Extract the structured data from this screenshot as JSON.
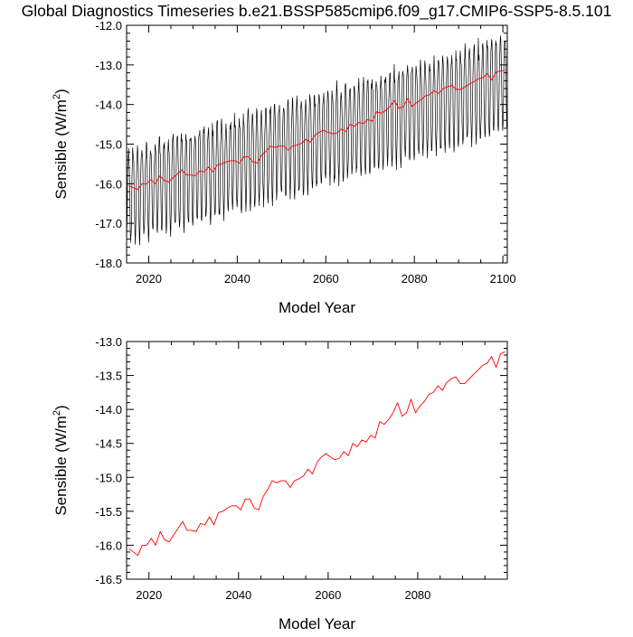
{
  "figure": {
    "title": "Global Diagnostics Timeseries b.e21.BSSP585cmip6.f09_g17.CMIP6-SSP5-8.5.101"
  },
  "colors": {
    "monthly_line": "#000000",
    "annual_line": "#ff0000",
    "axis": "#000000",
    "background": "#ffffff"
  },
  "chart_data": [
    {
      "type": "line",
      "xlabel": "Model Year",
      "ylabel": "Sensible (W/m²)",
      "ylabel_base": "Sensible (W/m",
      "ylabel_sup": "2",
      "ylabel_close": ")",
      "xlim": [
        2015,
        2101
      ],
      "ylim": [
        -18.0,
        -12.0
      ],
      "xticks": [
        2020,
        2040,
        2060,
        2080,
        2100
      ],
      "yticks": [
        -18.0,
        -17.0,
        -16.0,
        -15.0,
        -14.0,
        -13.0,
        -12.0
      ],
      "ytick_labels": [
        "-18.0",
        "-17.0",
        "-16.0",
        "-15.0",
        "-14.0",
        "-13.0",
        "-12.0"
      ],
      "grid": false,
      "series": [
        {
          "style": "monthly",
          "color": "#000000",
          "annual_cycle": {
            "mean_start": -16.0,
            "mean_end": -13.15,
            "max_offset": [
              0.75,
              0.9
            ],
            "min_offset": [
              -1.45,
              -1.5
            ],
            "months_per_year": 12
          }
        },
        {
          "style": "annual",
          "color": "#ff0000",
          "x": [
            2015.5,
            2016.5,
            2017.5,
            2018.5,
            2019.5,
            2020.5,
            2021.5,
            2022.5,
            2023.5,
            2024.5,
            2025.5,
            2026.5,
            2027.5,
            2028.5,
            2029.5,
            2030.5,
            2031.5,
            2032.5,
            2033.5,
            2034.5,
            2035.5,
            2036.5,
            2037.5,
            2038.5,
            2039.5,
            2040.5,
            2041.5,
            2042.5,
            2043.5,
            2044.5,
            2045.5,
            2046.5,
            2047.5,
            2048.5,
            2049.5,
            2050.5,
            2051.5,
            2052.5,
            2053.5,
            2054.5,
            2055.5,
            2056.5,
            2057.5,
            2058.5,
            2059.5,
            2060.5,
            2061.5,
            2062.5,
            2063.5,
            2064.5,
            2065.5,
            2066.5,
            2067.5,
            2068.5,
            2069.5,
            2070.5,
            2071.5,
            2072.5,
            2073.5,
            2074.5,
            2075.5,
            2076.5,
            2077.5,
            2078.5,
            2079.5,
            2080.5,
            2081.5,
            2082.5,
            2083.5,
            2084.5,
            2085.5,
            2086.5,
            2087.5,
            2088.5,
            2089.5,
            2090.5,
            2091.5,
            2092.5,
            2093.5,
            2094.5,
            2095.5,
            2096.5,
            2097.5,
            2098.5,
            2099.5,
            2100.5
          ],
          "y": [
            -16.05,
            -16.1,
            -16.15,
            -16.0,
            -16.0,
            -15.9,
            -16.0,
            -15.8,
            -15.92,
            -15.95,
            -15.85,
            -15.75,
            -15.65,
            -15.78,
            -15.78,
            -15.8,
            -15.68,
            -15.7,
            -15.58,
            -15.7,
            -15.52,
            -15.5,
            -15.45,
            -15.42,
            -15.42,
            -15.48,
            -15.32,
            -15.32,
            -15.45,
            -15.48,
            -15.28,
            -15.18,
            -15.05,
            -15.08,
            -15.05,
            -15.05,
            -15.15,
            -15.05,
            -15.02,
            -14.98,
            -14.88,
            -14.95,
            -14.78,
            -14.7,
            -14.65,
            -14.7,
            -14.74,
            -14.72,
            -14.62,
            -14.68,
            -14.5,
            -14.55,
            -14.45,
            -14.48,
            -14.38,
            -14.42,
            -14.18,
            -14.22,
            -14.15,
            -14.05,
            -13.9,
            -14.1,
            -14.05,
            -13.85,
            -14.05,
            -13.95,
            -13.88,
            -13.78,
            -13.75,
            -13.65,
            -13.72,
            -13.6,
            -13.55,
            -13.52,
            -13.62,
            -13.62,
            -13.55,
            -13.48,
            -13.42,
            -13.35,
            -13.32,
            -13.22,
            -13.38,
            -13.18,
            -13.15,
            -13.14
          ]
        }
      ]
    },
    {
      "type": "line",
      "xlabel": "Model Year",
      "ylabel": "Sensible (W/m²)",
      "ylabel_base": "Sensible (W/m",
      "ylabel_sup": "2",
      "ylabel_close": ")",
      "xlim": [
        2015,
        2100
      ],
      "ylim": [
        -16.5,
        -13.0
      ],
      "xticks": [
        2020,
        2040,
        2060,
        2080
      ],
      "yticks": [
        -16.5,
        -16.0,
        -15.5,
        -15.0,
        -14.5,
        -14.0,
        -13.5,
        -13.0
      ],
      "ytick_labels": [
        "-16.5",
        "-16.0",
        "-15.5",
        "-15.0",
        "-14.5",
        "-14.0",
        "-13.5",
        "-13.0"
      ],
      "grid": false,
      "series": [
        {
          "style": "annual",
          "color": "#ff0000",
          "x": [
            2015.5,
            2016.5,
            2017.5,
            2018.5,
            2019.5,
            2020.5,
            2021.5,
            2022.5,
            2023.5,
            2024.5,
            2025.5,
            2026.5,
            2027.5,
            2028.5,
            2029.5,
            2030.5,
            2031.5,
            2032.5,
            2033.5,
            2034.5,
            2035.5,
            2036.5,
            2037.5,
            2038.5,
            2039.5,
            2040.5,
            2041.5,
            2042.5,
            2043.5,
            2044.5,
            2045.5,
            2046.5,
            2047.5,
            2048.5,
            2049.5,
            2050.5,
            2051.5,
            2052.5,
            2053.5,
            2054.5,
            2055.5,
            2056.5,
            2057.5,
            2058.5,
            2059.5,
            2060.5,
            2061.5,
            2062.5,
            2063.5,
            2064.5,
            2065.5,
            2066.5,
            2067.5,
            2068.5,
            2069.5,
            2070.5,
            2071.5,
            2072.5,
            2073.5,
            2074.5,
            2075.5,
            2076.5,
            2077.5,
            2078.5,
            2079.5,
            2080.5,
            2081.5,
            2082.5,
            2083.5,
            2084.5,
            2085.5,
            2086.5,
            2087.5,
            2088.5,
            2089.5,
            2090.5,
            2091.5,
            2092.5,
            2093.5,
            2094.5,
            2095.5,
            2096.5,
            2097.5,
            2098.5,
            2099.5
          ],
          "y": [
            -16.05,
            -16.1,
            -16.15,
            -16.0,
            -16.0,
            -15.9,
            -16.0,
            -15.8,
            -15.92,
            -15.95,
            -15.85,
            -15.75,
            -15.65,
            -15.78,
            -15.78,
            -15.8,
            -15.68,
            -15.7,
            -15.58,
            -15.7,
            -15.52,
            -15.5,
            -15.45,
            -15.42,
            -15.42,
            -15.48,
            -15.32,
            -15.32,
            -15.45,
            -15.48,
            -15.28,
            -15.18,
            -15.05,
            -15.08,
            -15.05,
            -15.05,
            -15.15,
            -15.05,
            -15.02,
            -14.98,
            -14.88,
            -14.95,
            -14.78,
            -14.7,
            -14.65,
            -14.7,
            -14.74,
            -14.72,
            -14.62,
            -14.68,
            -14.5,
            -14.55,
            -14.45,
            -14.48,
            -14.38,
            -14.42,
            -14.18,
            -14.22,
            -14.15,
            -14.05,
            -13.9,
            -14.1,
            -14.05,
            -13.85,
            -14.05,
            -13.95,
            -13.88,
            -13.78,
            -13.75,
            -13.65,
            -13.72,
            -13.6,
            -13.55,
            -13.52,
            -13.62,
            -13.62,
            -13.55,
            -13.48,
            -13.42,
            -13.35,
            -13.32,
            -13.22,
            -13.38,
            -13.18,
            -13.15
          ]
        }
      ]
    }
  ]
}
